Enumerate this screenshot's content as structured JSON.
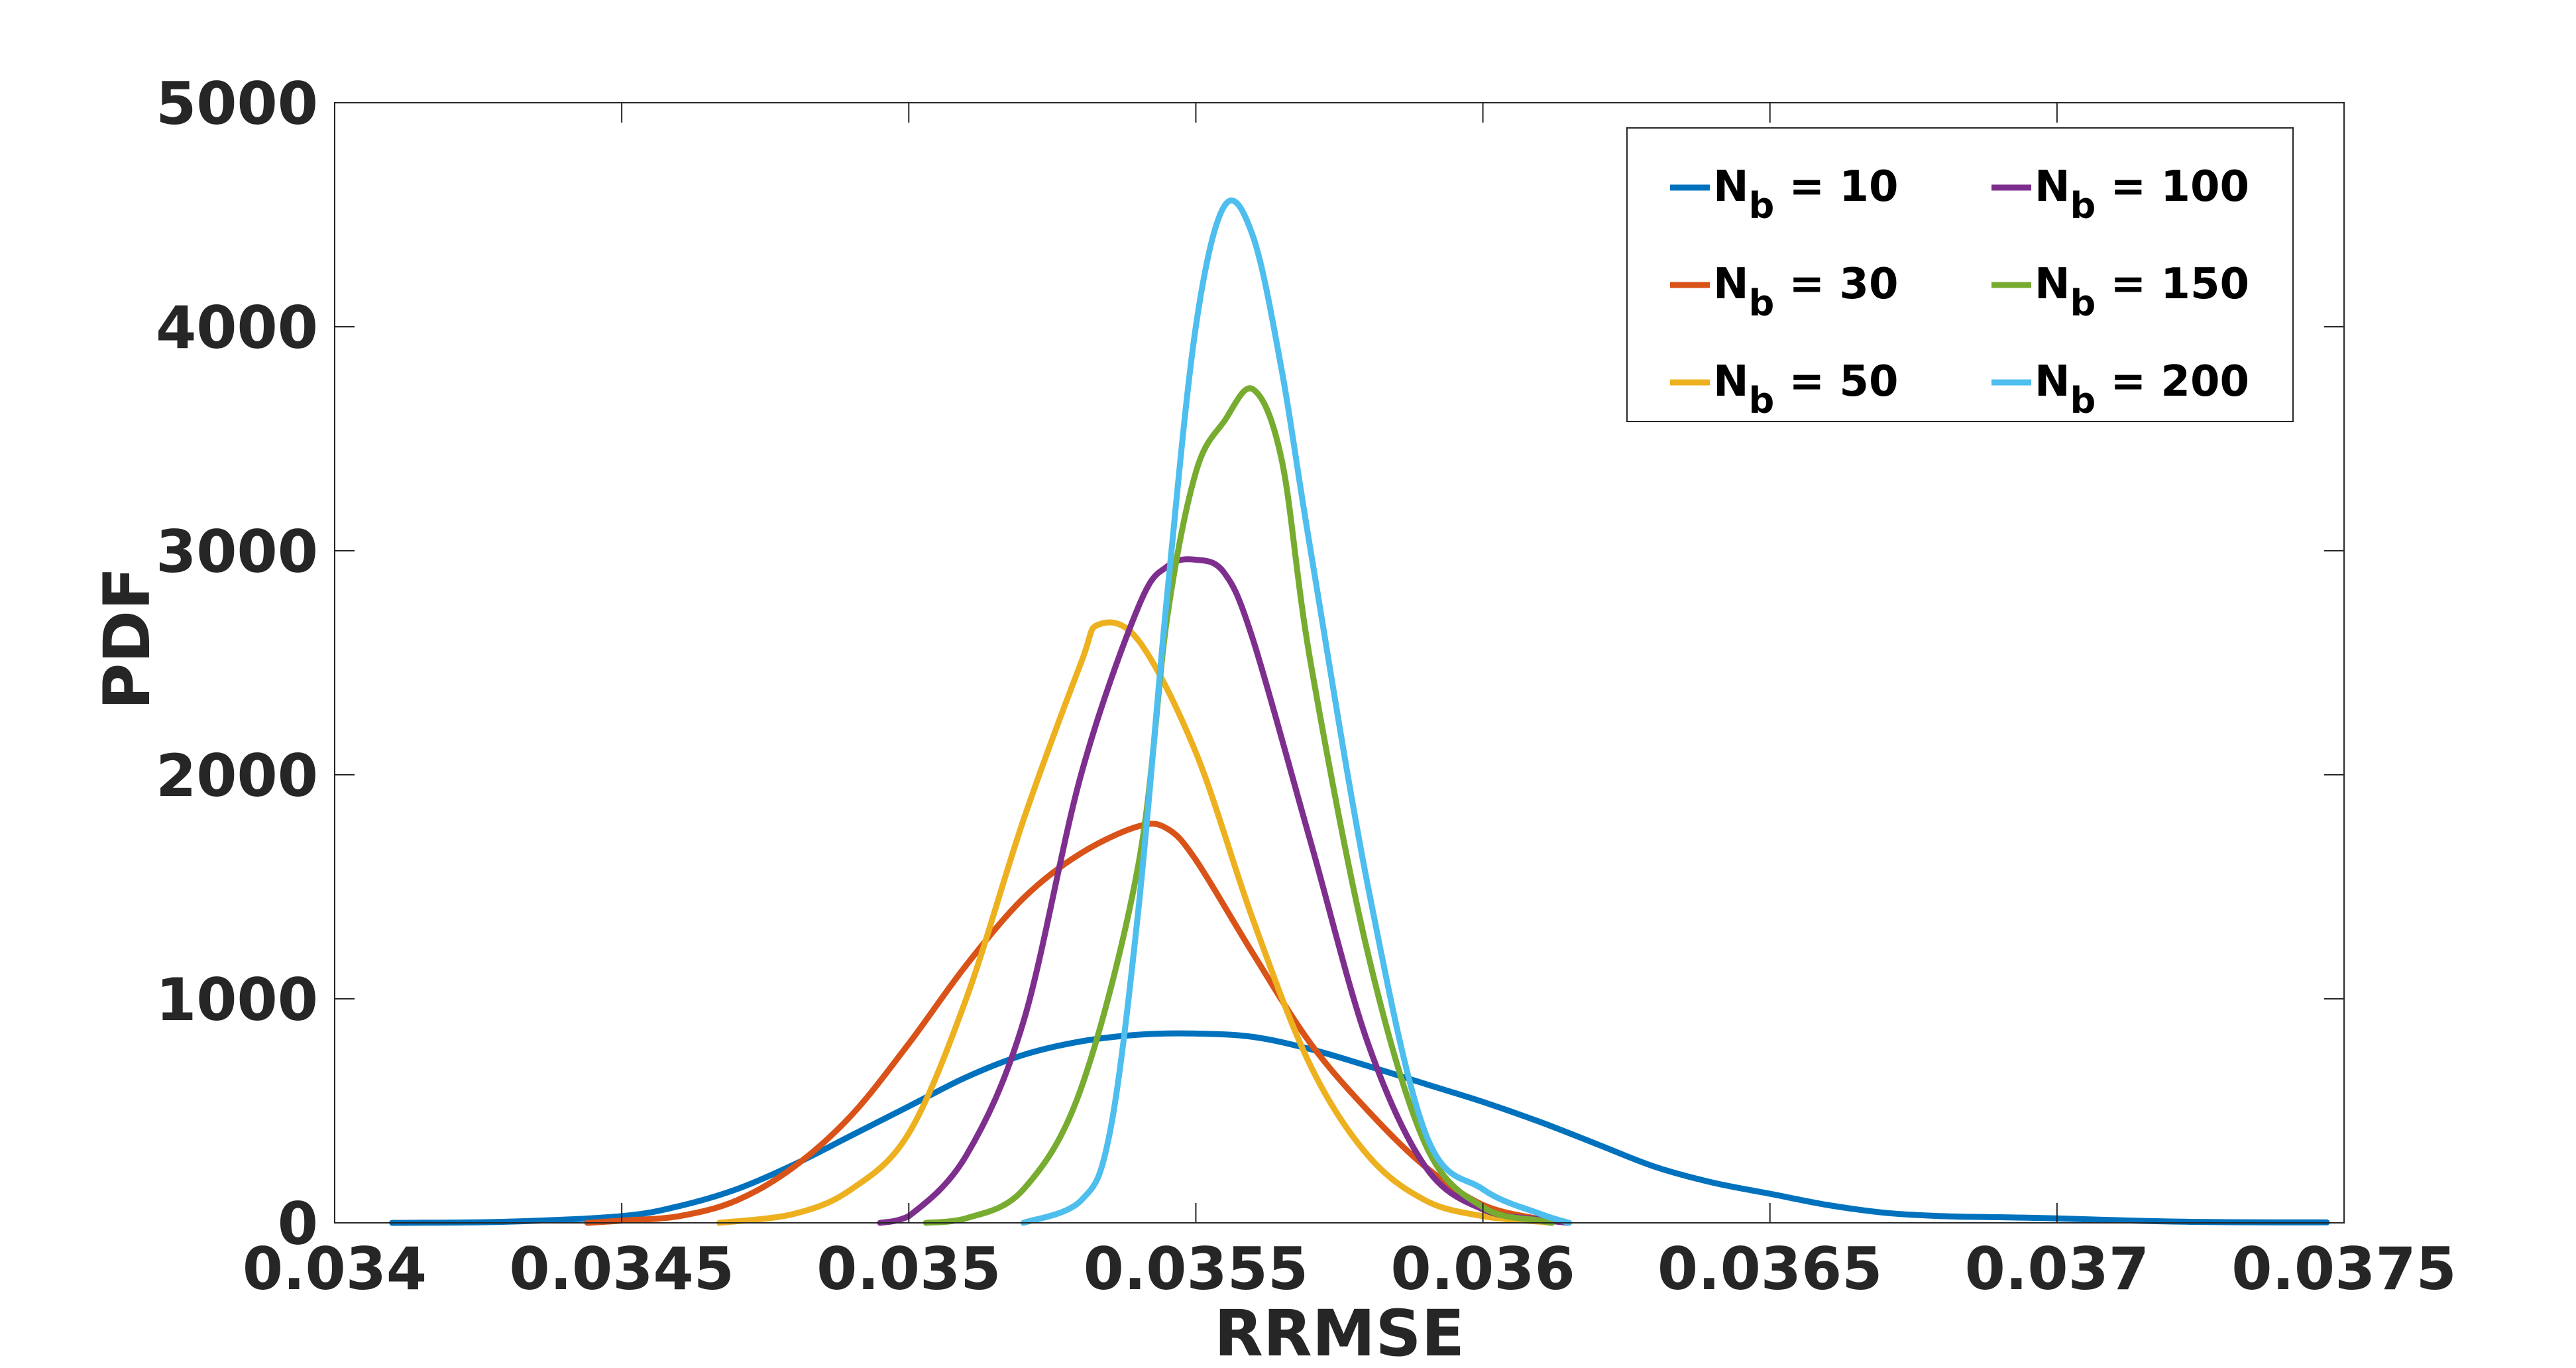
{
  "chart_data": {
    "type": "line",
    "title": "",
    "xlabel": "RRMSE",
    "ylabel": "PDF",
    "xlim": [
      0.034,
      0.0375
    ],
    "ylim": [
      0,
      5000
    ],
    "x_ticks": [
      "0.034",
      "0.0345",
      "0.035",
      "0.0355",
      "0.036",
      "0.0365",
      "0.037",
      "0.0375"
    ],
    "y_ticks": [
      "0",
      "1000",
      "2000",
      "3000",
      "4000",
      "5000"
    ],
    "grid": false,
    "legend_position": "top-right",
    "series": [
      {
        "name": "N_b = 10",
        "label_main": "N",
        "label_sub": "b",
        "label_rest": " = 10",
        "color": "#0072BD",
        "points": [
          [
            0.0341,
            0
          ],
          [
            0.0343,
            5
          ],
          [
            0.0345,
            30
          ],
          [
            0.0346,
            75
          ],
          [
            0.0347,
            150
          ],
          [
            0.0348,
            260
          ],
          [
            0.0349,
            390
          ],
          [
            0.035,
            520
          ],
          [
            0.0351,
            650
          ],
          [
            0.0352,
            750
          ],
          [
            0.0353,
            810
          ],
          [
            0.0354,
            840
          ],
          [
            0.0355,
            845
          ],
          [
            0.0356,
            830
          ],
          [
            0.0357,
            775
          ],
          [
            0.0358,
            700
          ],
          [
            0.0359,
            620
          ],
          [
            0.036,
            540
          ],
          [
            0.0361,
            450
          ],
          [
            0.0362,
            350
          ],
          [
            0.0363,
            250
          ],
          [
            0.0364,
            180
          ],
          [
            0.0365,
            130
          ],
          [
            0.0366,
            80
          ],
          [
            0.0367,
            45
          ],
          [
            0.0368,
            30
          ],
          [
            0.0369,
            25
          ],
          [
            0.037,
            20
          ],
          [
            0.0371,
            12
          ],
          [
            0.0372,
            6
          ],
          [
            0.0373,
            3
          ],
          [
            0.03747,
            2
          ]
        ]
      },
      {
        "name": "N_b = 30",
        "label_main": "N",
        "label_sub": "b",
        "label_rest": " = 30",
        "color": "#D95319",
        "points": [
          [
            0.03444,
            0
          ],
          [
            0.0345,
            10
          ],
          [
            0.0346,
            30
          ],
          [
            0.0347,
            100
          ],
          [
            0.0348,
            250
          ],
          [
            0.0349,
            480
          ],
          [
            0.035,
            800
          ],
          [
            0.0351,
            1150
          ],
          [
            0.0352,
            1450
          ],
          [
            0.0353,
            1650
          ],
          [
            0.0354,
            1770
          ],
          [
            0.03545,
            1760
          ],
          [
            0.0355,
            1620
          ],
          [
            0.0356,
            1200
          ],
          [
            0.0357,
            800
          ],
          [
            0.0358,
            500
          ],
          [
            0.0359,
            250
          ],
          [
            0.036,
            80
          ],
          [
            0.0361,
            15
          ],
          [
            0.03612,
            0
          ]
        ]
      },
      {
        "name": "N_b = 50",
        "label_main": "N",
        "label_sub": "b",
        "label_rest": " = 50",
        "color": "#EDB120",
        "points": [
          [
            0.03467,
            0
          ],
          [
            0.0348,
            40
          ],
          [
            0.0349,
            150
          ],
          [
            0.035,
            400
          ],
          [
            0.0351,
            1000
          ],
          [
            0.0352,
            1800
          ],
          [
            0.0353,
            2500
          ],
          [
            0.03533,
            2670
          ],
          [
            0.0354,
            2600
          ],
          [
            0.0355,
            2100
          ],
          [
            0.0356,
            1350
          ],
          [
            0.0357,
            700
          ],
          [
            0.0358,
            300
          ],
          [
            0.0359,
            100
          ],
          [
            0.036,
            30
          ],
          [
            0.0361,
            5
          ],
          [
            0.03612,
            0
          ]
        ]
      },
      {
        "name": "N_b = 100",
        "label_main": "N",
        "label_sub": "b",
        "label_rest": " = 100",
        "color": "#7E2F8E",
        "points": [
          [
            0.03495,
            0
          ],
          [
            0.035,
            30
          ],
          [
            0.0351,
            300
          ],
          [
            0.0352,
            900
          ],
          [
            0.0353,
            2000
          ],
          [
            0.0354,
            2750
          ],
          [
            0.03545,
            2930
          ],
          [
            0.0355,
            2960
          ],
          [
            0.03555,
            2900
          ],
          [
            0.0356,
            2600
          ],
          [
            0.0357,
            1700
          ],
          [
            0.0358,
            800
          ],
          [
            0.0359,
            250
          ],
          [
            0.036,
            60
          ],
          [
            0.0361,
            15
          ],
          [
            0.03615,
            0
          ]
        ]
      },
      {
        "name": "N_b = 150",
        "label_main": "N",
        "label_sub": "b",
        "label_rest": " = 150",
        "color": "#77AC30",
        "points": [
          [
            0.03503,
            0
          ],
          [
            0.0351,
            20
          ],
          [
            0.0352,
            150
          ],
          [
            0.0353,
            600
          ],
          [
            0.0354,
            1600
          ],
          [
            0.03545,
            2700
          ],
          [
            0.0355,
            3350
          ],
          [
            0.03555,
            3580
          ],
          [
            0.0356,
            3720
          ],
          [
            0.03565,
            3400
          ],
          [
            0.0357,
            2500
          ],
          [
            0.0358,
            1200
          ],
          [
            0.0359,
            350
          ],
          [
            0.036,
            70
          ],
          [
            0.0361,
            10
          ],
          [
            0.03612,
            0
          ]
        ]
      },
      {
        "name": "N_b = 200",
        "label_main": "N",
        "label_sub": "b",
        "label_rest": " = 200",
        "color": "#4DBEEE",
        "points": [
          [
            0.0352,
            0
          ],
          [
            0.0353,
            100
          ],
          [
            0.03535,
            400
          ],
          [
            0.0354,
            1400
          ],
          [
            0.03545,
            2800
          ],
          [
            0.0355,
            4000
          ],
          [
            0.03555,
            4540
          ],
          [
            0.0356,
            4400
          ],
          [
            0.03565,
            3800
          ],
          [
            0.0357,
            3000
          ],
          [
            0.0358,
            1500
          ],
          [
            0.0359,
            400
          ],
          [
            0.036,
            150
          ],
          [
            0.0361,
            40
          ],
          [
            0.03615,
            0
          ]
        ]
      }
    ]
  }
}
